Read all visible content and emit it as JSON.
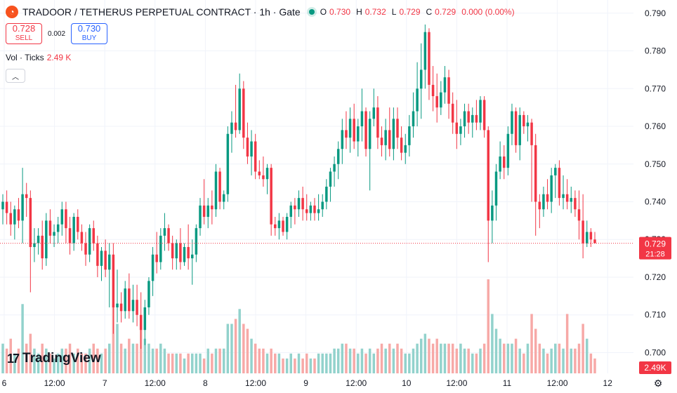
{
  "header": {
    "title": "TRADOOR / TETHERUS PERPETUAL CONTRACT · 1h · Gate",
    "ohlc": [
      {
        "label": "O",
        "value": "0.730"
      },
      {
        "label": "H",
        "value": "0.732"
      },
      {
        "label": "L",
        "value": "0.729"
      },
      {
        "label": "C",
        "value": "0.729"
      },
      {
        "label": "",
        "value": "0.000 (0.00%)"
      }
    ]
  },
  "trade": {
    "sell_price": "0.728",
    "sell_label": "SELL",
    "spread": "0.002",
    "buy_price": "0.730",
    "buy_label": "BUY"
  },
  "volume_legend": {
    "label": "Vol · Ticks",
    "value": "2.49 K"
  },
  "branding": {
    "logo_text": "TradingView"
  },
  "colors": {
    "up": "#089981",
    "down": "#f23645",
    "up_vol": "#92d2cc",
    "down_vol": "#f7a9a7",
    "grid": "#f0f3fa"
  },
  "chart_data": {
    "type": "candlestick",
    "price_axis": {
      "ticks": [
        0.79,
        0.78,
        0.77,
        0.76,
        0.75,
        0.74,
        0.73,
        0.72,
        0.71,
        0.7
      ],
      "ylim": [
        0.6945,
        0.7935
      ]
    },
    "time_axis": {
      "ticks": [
        "6",
        "12:00",
        "7",
        "12:00",
        "8",
        "12:00",
        "9",
        "12:00",
        "10",
        "12:00",
        "11",
        "12:00",
        "12"
      ]
    },
    "current_price": {
      "value": 0.729,
      "label": "0.729",
      "countdown": "21:28"
    },
    "volume_label": "2.49K",
    "candles": [
      [
        0.738,
        0.742,
        0.734,
        0.74,
        6
      ],
      [
        0.74,
        0.743,
        0.734,
        0.737,
        5
      ],
      [
        0.737,
        0.74,
        0.731,
        0.734,
        7
      ],
      [
        0.734,
        0.739,
        0.73,
        0.738,
        4
      ],
      [
        0.738,
        0.741,
        0.733,
        0.735,
        5
      ],
      [
        0.735,
        0.749,
        0.729,
        0.742,
        14
      ],
      [
        0.742,
        0.745,
        0.736,
        0.741,
        6
      ],
      [
        0.741,
        0.743,
        0.716,
        0.728,
        8
      ],
      [
        0.728,
        0.733,
        0.724,
        0.729,
        5
      ],
      [
        0.729,
        0.733,
        0.726,
        0.731,
        4
      ],
      [
        0.731,
        0.735,
        0.722,
        0.725,
        6
      ],
      [
        0.725,
        0.737,
        0.723,
        0.735,
        5
      ],
      [
        0.735,
        0.738,
        0.729,
        0.731,
        4
      ],
      [
        0.731,
        0.734,
        0.728,
        0.732,
        3
      ],
      [
        0.732,
        0.736,
        0.729,
        0.734,
        4
      ],
      [
        0.734,
        0.74,
        0.731,
        0.738,
        5
      ],
      [
        0.738,
        0.74,
        0.729,
        0.733,
        5
      ],
      [
        0.733,
        0.736,
        0.726,
        0.729,
        6
      ],
      [
        0.729,
        0.737,
        0.727,
        0.736,
        4
      ],
      [
        0.736,
        0.738,
        0.73,
        0.732,
        5
      ],
      [
        0.732,
        0.734,
        0.727,
        0.729,
        4
      ],
      [
        0.729,
        0.732,
        0.723,
        0.726,
        4
      ],
      [
        0.726,
        0.734,
        0.724,
        0.733,
        5
      ],
      [
        0.733,
        0.735,
        0.727,
        0.729,
        6
      ],
      [
        0.729,
        0.731,
        0.72,
        0.723,
        5
      ],
      [
        0.723,
        0.728,
        0.719,
        0.727,
        4
      ],
      [
        0.727,
        0.73,
        0.72,
        0.722,
        5
      ],
      [
        0.722,
        0.729,
        0.712,
        0.726,
        6
      ],
      [
        0.726,
        0.729,
        0.705,
        0.712,
        14
      ],
      [
        0.712,
        0.722,
        0.708,
        0.713,
        10
      ],
      [
        0.713,
        0.716,
        0.708,
        0.711,
        6
      ],
      [
        0.711,
        0.719,
        0.709,
        0.717,
        5
      ],
      [
        0.717,
        0.721,
        0.709,
        0.711,
        7
      ],
      [
        0.711,
        0.718,
        0.708,
        0.714,
        6
      ],
      [
        0.714,
        0.718,
        0.707,
        0.71,
        6
      ],
      [
        0.71,
        0.716,
        0.701,
        0.706,
        10
      ],
      [
        0.706,
        0.714,
        0.702,
        0.712,
        7
      ],
      [
        0.712,
        0.72,
        0.71,
        0.719,
        6
      ],
      [
        0.719,
        0.728,
        0.715,
        0.726,
        5
      ],
      [
        0.726,
        0.732,
        0.721,
        0.724,
        5
      ],
      [
        0.724,
        0.733,
        0.722,
        0.731,
        6
      ],
      [
        0.731,
        0.737,
        0.727,
        0.733,
        5
      ],
      [
        0.733,
        0.734,
        0.727,
        0.729,
        4
      ],
      [
        0.729,
        0.731,
        0.722,
        0.725,
        4
      ],
      [
        0.725,
        0.73,
        0.722,
        0.729,
        4
      ],
      [
        0.729,
        0.733,
        0.722,
        0.724,
        4
      ],
      [
        0.724,
        0.729,
        0.723,
        0.728,
        3
      ],
      [
        0.728,
        0.734,
        0.722,
        0.725,
        4
      ],
      [
        0.725,
        0.73,
        0.718,
        0.726,
        4
      ],
      [
        0.726,
        0.734,
        0.724,
        0.733,
        4
      ],
      [
        0.733,
        0.741,
        0.731,
        0.739,
        4
      ],
      [
        0.739,
        0.746,
        0.734,
        0.736,
        3
      ],
      [
        0.736,
        0.741,
        0.733,
        0.739,
        5
      ],
      [
        0.739,
        0.743,
        0.734,
        0.738,
        4
      ],
      [
        0.738,
        0.75,
        0.736,
        0.748,
        5
      ],
      [
        0.748,
        0.749,
        0.738,
        0.74,
        5
      ],
      [
        0.74,
        0.743,
        0.738,
        0.742,
        5
      ],
      [
        0.742,
        0.76,
        0.74,
        0.758,
        10
      ],
      [
        0.758,
        0.764,
        0.753,
        0.761,
        10
      ],
      [
        0.761,
        0.771,
        0.757,
        0.759,
        11
      ],
      [
        0.759,
        0.774,
        0.758,
        0.77,
        13
      ],
      [
        0.77,
        0.772,
        0.754,
        0.757,
        10
      ],
      [
        0.757,
        0.761,
        0.75,
        0.752,
        9
      ],
      [
        0.752,
        0.759,
        0.747,
        0.756,
        7
      ],
      [
        0.756,
        0.758,
        0.746,
        0.748,
        6
      ],
      [
        0.748,
        0.751,
        0.746,
        0.747,
        5
      ],
      [
        0.747,
        0.752,
        0.744,
        0.746,
        5
      ],
      [
        0.746,
        0.75,
        0.742,
        0.749,
        4
      ],
      [
        0.749,
        0.75,
        0.731,
        0.734,
        5
      ],
      [
        0.734,
        0.736,
        0.731,
        0.733,
        4
      ],
      [
        0.733,
        0.737,
        0.73,
        0.735,
        4
      ],
      [
        0.735,
        0.736,
        0.731,
        0.732,
        3
      ],
      [
        0.732,
        0.737,
        0.73,
        0.736,
        3
      ],
      [
        0.736,
        0.74,
        0.733,
        0.739,
        4
      ],
      [
        0.739,
        0.741,
        0.734,
        0.738,
        3
      ],
      [
        0.738,
        0.743,
        0.736,
        0.741,
        4
      ],
      [
        0.741,
        0.744,
        0.735,
        0.738,
        3
      ],
      [
        0.738,
        0.742,
        0.735,
        0.737,
        4
      ],
      [
        0.737,
        0.74,
        0.735,
        0.739,
        3
      ],
      [
        0.739,
        0.741,
        0.735,
        0.737,
        3
      ],
      [
        0.737,
        0.742,
        0.735,
        0.738,
        4
      ],
      [
        0.738,
        0.742,
        0.736,
        0.74,
        4
      ],
      [
        0.74,
        0.746,
        0.738,
        0.744,
        4
      ],
      [
        0.744,
        0.749,
        0.74,
        0.748,
        4
      ],
      [
        0.748,
        0.752,
        0.744,
        0.75,
        5
      ],
      [
        0.75,
        0.756,
        0.746,
        0.754,
        5
      ],
      [
        0.754,
        0.762,
        0.75,
        0.759,
        6
      ],
      [
        0.759,
        0.764,
        0.754,
        0.757,
        6
      ],
      [
        0.757,
        0.765,
        0.753,
        0.762,
        5
      ],
      [
        0.762,
        0.766,
        0.754,
        0.756,
        5
      ],
      [
        0.756,
        0.762,
        0.752,
        0.76,
        4
      ],
      [
        0.76,
        0.77,
        0.756,
        0.764,
        5
      ],
      [
        0.764,
        0.765,
        0.752,
        0.754,
        4
      ],
      [
        0.754,
        0.764,
        0.743,
        0.762,
        5
      ],
      [
        0.762,
        0.77,
        0.76,
        0.765,
        4
      ],
      [
        0.765,
        0.768,
        0.754,
        0.757,
        5
      ],
      [
        0.757,
        0.76,
        0.752,
        0.755,
        6
      ],
      [
        0.755,
        0.762,
        0.751,
        0.759,
        5
      ],
      [
        0.759,
        0.765,
        0.752,
        0.754,
        6
      ],
      [
        0.754,
        0.765,
        0.751,
        0.762,
        5
      ],
      [
        0.762,
        0.765,
        0.754,
        0.757,
        6
      ],
      [
        0.757,
        0.76,
        0.751,
        0.753,
        5
      ],
      [
        0.753,
        0.758,
        0.75,
        0.755,
        4
      ],
      [
        0.755,
        0.763,
        0.752,
        0.76,
        4
      ],
      [
        0.76,
        0.769,
        0.757,
        0.764,
        5
      ],
      [
        0.764,
        0.777,
        0.76,
        0.77,
        6
      ],
      [
        0.77,
        0.782,
        0.762,
        0.775,
        7
      ],
      [
        0.775,
        0.787,
        0.77,
        0.785,
        8
      ],
      [
        0.785,
        0.786,
        0.767,
        0.771,
        7
      ],
      [
        0.771,
        0.776,
        0.764,
        0.768,
        6
      ],
      [
        0.768,
        0.774,
        0.761,
        0.765,
        7
      ],
      [
        0.765,
        0.772,
        0.763,
        0.769,
        6
      ],
      [
        0.769,
        0.776,
        0.766,
        0.773,
        6
      ],
      [
        0.773,
        0.775,
        0.762,
        0.766,
        6
      ],
      [
        0.766,
        0.769,
        0.758,
        0.761,
        6
      ],
      [
        0.761,
        0.767,
        0.754,
        0.758,
        5
      ],
      [
        0.758,
        0.762,
        0.755,
        0.76,
        6
      ],
      [
        0.76,
        0.766,
        0.757,
        0.764,
        5
      ],
      [
        0.764,
        0.766,
        0.758,
        0.761,
        5
      ],
      [
        0.761,
        0.765,
        0.757,
        0.763,
        4
      ],
      [
        0.763,
        0.767,
        0.759,
        0.761,
        4
      ],
      [
        0.761,
        0.768,
        0.759,
        0.767,
        5
      ],
      [
        0.767,
        0.768,
        0.757,
        0.759,
        6
      ],
      [
        0.759,
        0.76,
        0.724,
        0.735,
        19
      ],
      [
        0.735,
        0.743,
        0.729,
        0.739,
        12
      ],
      [
        0.739,
        0.75,
        0.735,
        0.748,
        9
      ],
      [
        0.748,
        0.756,
        0.746,
        0.752,
        7
      ],
      [
        0.752,
        0.755,
        0.746,
        0.749,
        6
      ],
      [
        0.749,
        0.76,
        0.747,
        0.758,
        6
      ],
      [
        0.758,
        0.766,
        0.755,
        0.764,
        6
      ],
      [
        0.764,
        0.765,
        0.753,
        0.755,
        7
      ],
      [
        0.755,
        0.765,
        0.751,
        0.763,
        5
      ],
      [
        0.763,
        0.764,
        0.758,
        0.76,
        4
      ],
      [
        0.76,
        0.763,
        0.756,
        0.761,
        6
      ],
      [
        0.761,
        0.762,
        0.74,
        0.755,
        12
      ],
      [
        0.755,
        0.758,
        0.731,
        0.74,
        9
      ],
      [
        0.74,
        0.742,
        0.733,
        0.738,
        6
      ],
      [
        0.738,
        0.744,
        0.736,
        0.742,
        5
      ],
      [
        0.742,
        0.746,
        0.738,
        0.74,
        4
      ],
      [
        0.74,
        0.749,
        0.737,
        0.747,
        5
      ],
      [
        0.747,
        0.75,
        0.741,
        0.749,
        6
      ],
      [
        0.749,
        0.751,
        0.739,
        0.741,
        6
      ],
      [
        0.741,
        0.747,
        0.738,
        0.742,
        5
      ],
      [
        0.742,
        0.746,
        0.738,
        0.74,
        12
      ],
      [
        0.74,
        0.744,
        0.737,
        0.741,
        5
      ],
      [
        0.741,
        0.743,
        0.736,
        0.738,
        5
      ],
      [
        0.738,
        0.743,
        0.73,
        0.735,
        6
      ],
      [
        0.735,
        0.742,
        0.725,
        0.729,
        10
      ],
      [
        0.729,
        0.735,
        0.728,
        0.732,
        7
      ],
      [
        0.732,
        0.733,
        0.728,
        0.73,
        4
      ],
      [
        0.73,
        0.732,
        0.729,
        0.729,
        3
      ]
    ]
  }
}
